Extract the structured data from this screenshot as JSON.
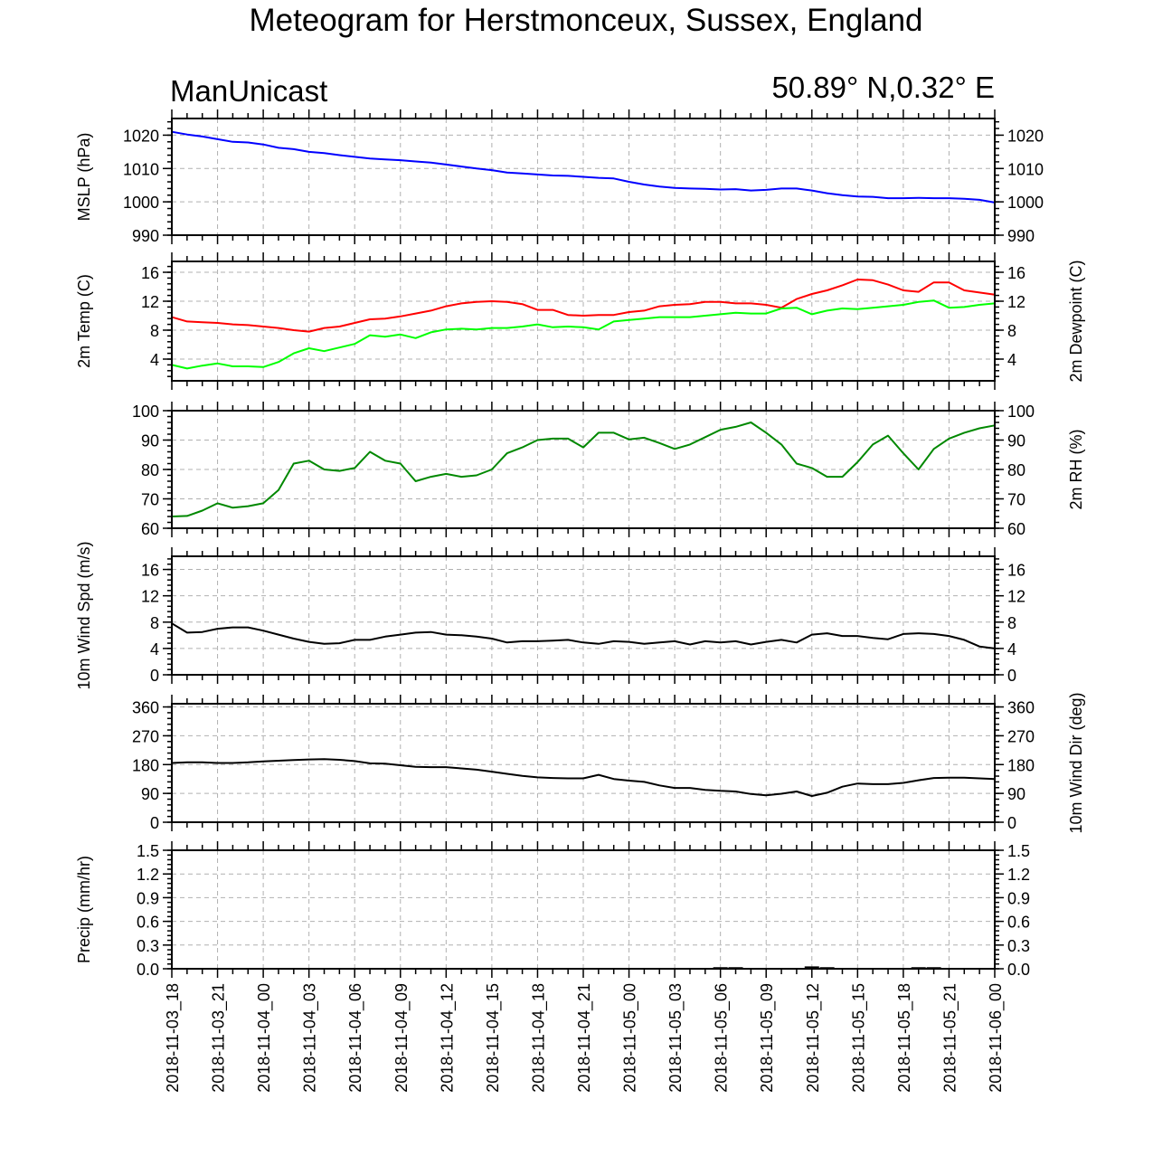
{
  "page": {
    "title": "Meteogram for Herstmonceux, Sussex, England",
    "model": "ManUnicast",
    "location": "50.89° N,0.32° E"
  },
  "chart_data": {
    "type": "line",
    "x_labels": [
      "2018-11-03_18",
      "2018-11-03_21",
      "2018-11-04_00",
      "2018-11-04_03",
      "2018-11-04_06",
      "2018-11-04_09",
      "2018-11-04_12",
      "2018-11-04_15",
      "2018-11-04_18",
      "2018-11-04_21",
      "2018-11-05_00",
      "2018-11-05_03",
      "2018-11-05_06",
      "2018-11-05_09",
      "2018-11-05_12",
      "2018-11-05_15",
      "2018-11-05_18",
      "2018-11-05_21",
      "2018-11-06_00"
    ],
    "x_range_hours": [
      0,
      54
    ],
    "panels": [
      {
        "id": "mslp",
        "left_label": "MSLP (hPa)",
        "right_label": "",
        "ylim": [
          990,
          1025
        ],
        "ticks": [
          990,
          1000,
          1010,
          1020
        ],
        "tick_labels": [
          "990",
          "1000",
          "1010",
          "1020"
        ],
        "series": [
          {
            "color": "#0000ff",
            "x": [
              0,
              1,
              2,
              3,
              4,
              5,
              6,
              7,
              8,
              9,
              10,
              11,
              12,
              13,
              14,
              15,
              16,
              17,
              18,
              19,
              20,
              21,
              22,
              23,
              24,
              25,
              26,
              27,
              28,
              29,
              30,
              31,
              32,
              33,
              34,
              35,
              36,
              37,
              38,
              39,
              40,
              41,
              42,
              43,
              44,
              45,
              46,
              47,
              48,
              49,
              50,
              51,
              52,
              53,
              54
            ],
            "values": [
              1021,
              1020.2,
              1019.6,
              1018.8,
              1018,
              1017.8,
              1017.2,
              1016.2,
              1015.8,
              1015,
              1014.6,
              1014,
              1013.5,
              1013,
              1012.7,
              1012.5,
              1012.1,
              1011.8,
              1011.2,
              1010.6,
              1010,
              1009.5,
              1008.8,
              1008.5,
              1008.2,
              1007.9,
              1007.8,
              1007.5,
              1007.2,
              1007,
              1006,
              1005.2,
              1004.6,
              1004.2,
              1004,
              1003.9,
              1003.7,
              1003.8,
              1003.4,
              1003.6,
              1004,
              1004,
              1003.4,
              1002.6,
              1002,
              1001.6,
              1001.5,
              1001.1,
              1001.1,
              1001.2,
              1001.1,
              1001.1,
              1000.9,
              1000.6,
              999.8
            ]
          }
        ]
      },
      {
        "id": "temp",
        "left_label": "2m Temp (C)",
        "right_label": "2m Dewpoint (C)",
        "ylim": [
          1,
          17.5
        ],
        "ticks": [
          4,
          8,
          12,
          16
        ],
        "tick_labels": [
          "4",
          "8",
          "12",
          "16"
        ],
        "series": [
          {
            "color": "#ff0000",
            "x": [
              0,
              1,
              2,
              3,
              4,
              5,
              6,
              7,
              8,
              9,
              10,
              11,
              12,
              13,
              14,
              15,
              16,
              17,
              18,
              19,
              20,
              21,
              22,
              23,
              24,
              25,
              26,
              27,
              28,
              29,
              30,
              31,
              32,
              33,
              34,
              35,
              36,
              37,
              38,
              39,
              40,
              41,
              42,
              43,
              44,
              45,
              46,
              47,
              48,
              49,
              50,
              51,
              52,
              53,
              54
            ],
            "values": [
              9.8,
              9.2,
              9.1,
              9.0,
              8.8,
              8.7,
              8.5,
              8.3,
              8.0,
              7.8,
              8.3,
              8.5,
              9.0,
              9.5,
              9.6,
              9.9,
              10.3,
              10.7,
              11.3,
              11.7,
              11.9,
              12.0,
              11.9,
              11.6,
              10.8,
              10.8,
              10.1,
              10.0,
              10.1,
              10.1,
              10.5,
              10.7,
              11.3,
              11.5,
              11.6,
              11.9,
              11.9,
              11.7,
              11.7,
              11.5,
              11.1,
              12.3,
              13.0,
              13.5,
              14.2,
              15.0,
              14.9,
              14.3,
              13.5,
              13.3,
              14.6,
              14.6,
              13.5,
              13.2,
              12.9
            ]
          },
          {
            "color": "#00ff00",
            "x": [
              0,
              1,
              2,
              3,
              4,
              5,
              6,
              7,
              8,
              9,
              10,
              11,
              12,
              13,
              14,
              15,
              16,
              17,
              18,
              19,
              20,
              21,
              22,
              23,
              24,
              25,
              26,
              27,
              28,
              29,
              30,
              31,
              32,
              33,
              34,
              35,
              36,
              37,
              38,
              39,
              40,
              41,
              42,
              43,
              44,
              45,
              46,
              47,
              48,
              49,
              50,
              51,
              52,
              53,
              54
            ],
            "values": [
              3.2,
              2.7,
              3.1,
              3.4,
              3.0,
              3.0,
              2.9,
              3.6,
              4.8,
              5.5,
              5.1,
              5.6,
              6.1,
              7.3,
              7.1,
              7.4,
              6.9,
              7.7,
              8.1,
              8.2,
              8.1,
              8.3,
              8.3,
              8.5,
              8.8,
              8.4,
              8.5,
              8.4,
              8.1,
              9.2,
              9.4,
              9.6,
              9.8,
              9.8,
              9.8,
              10.0,
              10.2,
              10.4,
              10.3,
              10.3,
              11.0,
              11.1,
              10.2,
              10.7,
              11.0,
              10.9,
              11.1,
              11.3,
              11.5,
              11.9,
              12.1,
              11.1,
              11.2,
              11.5,
              11.7
            ]
          }
        ]
      },
      {
        "id": "rh",
        "left_label": "",
        "right_label": "2m RH (%)",
        "ylim": [
          60,
          100
        ],
        "ticks": [
          60,
          70,
          80,
          90,
          100
        ],
        "tick_labels": [
          "60",
          "70",
          "80",
          "90",
          "100"
        ],
        "series": [
          {
            "color": "#008800",
            "x": [
              0,
              1,
              2,
              3,
              4,
              5,
              6,
              7,
              8,
              9,
              10,
              11,
              12,
              13,
              14,
              15,
              16,
              17,
              18,
              19,
              20,
              21,
              22,
              23,
              24,
              25,
              26,
              27,
              28,
              29,
              30,
              31,
              32,
              33,
              34,
              35,
              36,
              37,
              38,
              39,
              40,
              41,
              42,
              43,
              44,
              45,
              46,
              47,
              48,
              49,
              50,
              51,
              52,
              53,
              54
            ],
            "values": [
              64.0,
              64.2,
              66.0,
              68.5,
              67.0,
              67.5,
              68.5,
              73.0,
              82.0,
              83.0,
              80.0,
              79.5,
              80.5,
              86.0,
              83.0,
              82.0,
              76.0,
              77.5,
              78.5,
              77.5,
              78.0,
              80.0,
              85.5,
              87.5,
              90.0,
              90.5,
              90.5,
              87.5,
              92.5,
              92.5,
              90.2,
              90.8,
              89.0,
              87.0,
              88.5,
              91.0,
              93.5,
              94.5,
              96.0,
              92.5,
              88.5,
              82.0,
              80.5,
              77.5,
              77.5,
              82.5,
              88.5,
              91.5,
              85.5,
              80.0,
              87.0,
              90.5,
              92.5,
              94.0,
              95.0
            ]
          }
        ]
      },
      {
        "id": "wspd",
        "left_label": "10m Wind Spd (m/s)",
        "right_label": "",
        "ylim": [
          0,
          18
        ],
        "ticks": [
          0,
          4,
          8,
          12,
          16
        ],
        "tick_labels": [
          "0",
          "4",
          "8",
          "12",
          "16"
        ],
        "series": [
          {
            "color": "#000000",
            "x": [
              0,
              1,
              2,
              3,
              4,
              5,
              6,
              7,
              8,
              9,
              10,
              11,
              12,
              13,
              14,
              15,
              16,
              17,
              18,
              19,
              20,
              21,
              22,
              23,
              24,
              25,
              26,
              27,
              28,
              29,
              30,
              31,
              32,
              33,
              34,
              35,
              36,
              37,
              38,
              39,
              40,
              41,
              42,
              43,
              44,
              45,
              46,
              47,
              48,
              49,
              50,
              51,
              52,
              53,
              54
            ],
            "values": [
              7.8,
              6.4,
              6.5,
              7.0,
              7.2,
              7.2,
              6.7,
              6.1,
              5.5,
              5.0,
              4.7,
              4.8,
              5.3,
              5.3,
              5.8,
              6.1,
              6.4,
              6.5,
              6.1,
              6.0,
              5.8,
              5.5,
              4.9,
              5.1,
              5.1,
              5.2,
              5.3,
              4.9,
              4.7,
              5.1,
              5.0,
              4.7,
              4.9,
              5.1,
              4.6,
              5.1,
              4.9,
              5.1,
              4.6,
              5.0,
              5.3,
              4.9,
              6.1,
              6.3,
              5.9,
              5.9,
              5.6,
              5.4,
              6.2,
              6.3,
              6.2,
              5.9,
              5.3,
              4.3,
              4.0
            ]
          }
        ]
      },
      {
        "id": "wdir",
        "left_label": "",
        "right_label": "10m Wind Dir (deg)",
        "ylim": [
          0,
          370
        ],
        "ticks": [
          0,
          90,
          180,
          270,
          360
        ],
        "tick_labels": [
          "0",
          "90",
          "180",
          "270",
          "360"
        ],
        "series": [
          {
            "color": "#000000",
            "x": [
              0,
              1,
              2,
              3,
              4,
              5,
              6,
              7,
              8,
              9,
              10,
              11,
              12,
              13,
              14,
              15,
              16,
              17,
              18,
              19,
              20,
              21,
              22,
              23,
              24,
              25,
              26,
              27,
              28,
              29,
              30,
              31,
              32,
              33,
              34,
              35,
              36,
              37,
              38,
              39,
              40,
              41,
              42,
              43,
              44,
              45,
              46,
              47,
              48,
              49,
              50,
              51,
              52,
              53,
              54
            ],
            "values": [
              185,
              187,
              187,
              185,
              185,
              187,
              190,
              192,
              194,
              196,
              197,
              195,
              191,
              184,
              183,
              178,
              173,
              172,
              172,
              168,
              164,
              158,
              151,
              145,
              140,
              138,
              137,
              137,
              148,
              135,
              130,
              126,
              115,
              107,
              107,
              101,
              98,
              96,
              88,
              84,
              89,
              96,
              82,
              92,
              111,
              121,
              119,
              119,
              123,
              131,
              138,
              139,
              139,
              137,
              135
            ]
          }
        ]
      },
      {
        "id": "precip",
        "left_label": "Precip (mm/hr)",
        "right_label": "",
        "ylim": [
          0,
          1.5
        ],
        "ticks": [
          0,
          0.3,
          0.6,
          0.9,
          1.2,
          1.5
        ],
        "tick_labels": [
          "0.0",
          "0.3",
          "0.6",
          "0.9",
          "1.2",
          "1.5"
        ],
        "series": [
          {
            "color": "#000000",
            "kind": "bar",
            "x": [
              34,
              36,
              37,
              38,
              41,
              42,
              43,
              49,
              50
            ],
            "values": [
              0.01,
              0.02,
              0.02,
              0.01,
              0.01,
              0.03,
              0.02,
              0.02,
              0.02
            ]
          }
        ]
      }
    ]
  }
}
